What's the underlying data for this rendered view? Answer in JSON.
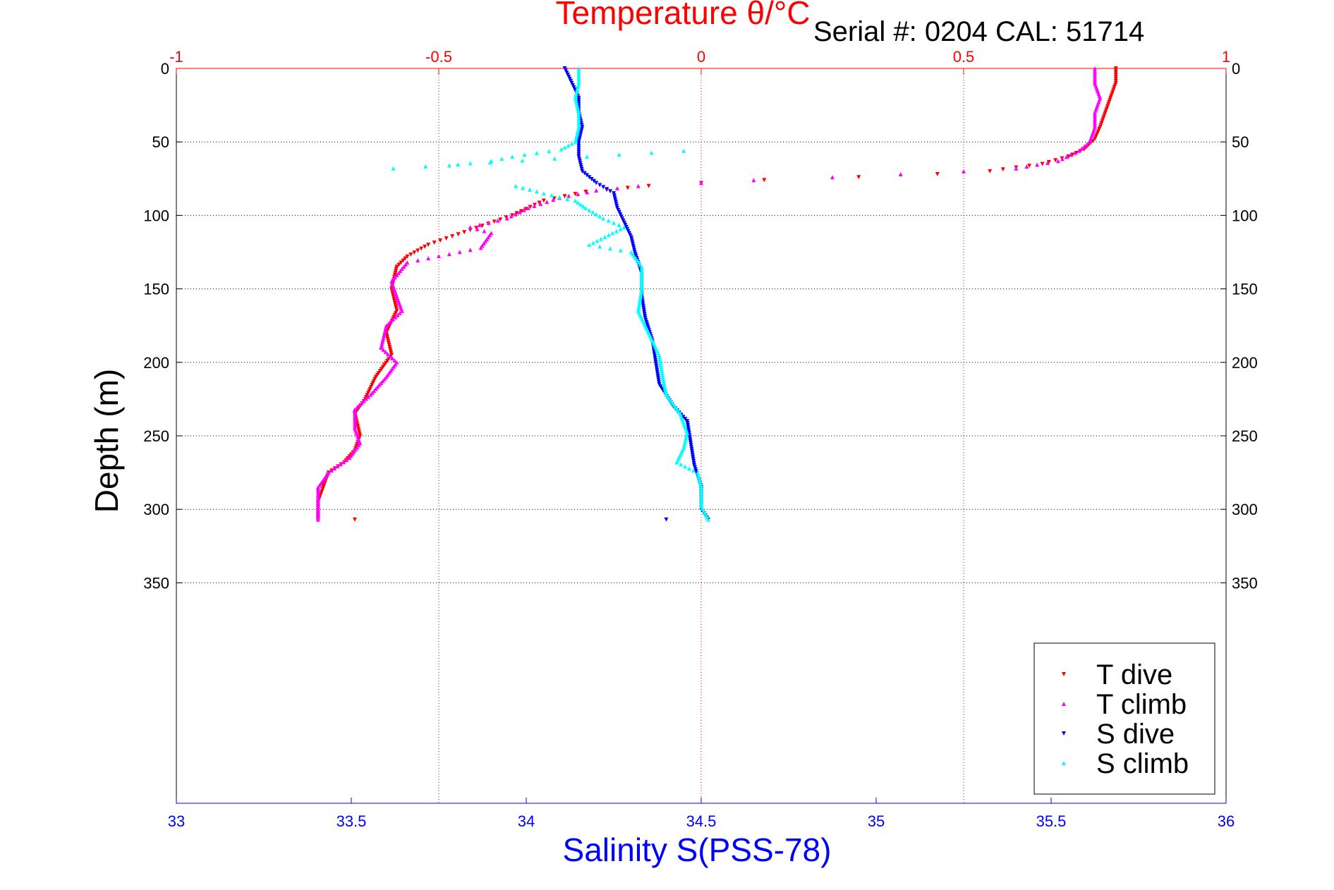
{
  "serial_label": "Serial #: 0204   CAL: 51714",
  "chart_data": {
    "type": "scatter",
    "title": "Temperature θ/°C",
    "ylabel": "Depth (m)",
    "xlabel": "Salinity S(PSS-78)",
    "ylim": [
      0,
      500
    ],
    "y_reversed": true,
    "y_ticks": [
      "0",
      "50",
      "100",
      "150",
      "200",
      "250",
      "300",
      "350"
    ],
    "temperature_axis": {
      "label": "Temperature θ/°C",
      "range": [
        -1,
        1
      ],
      "ticks": [
        "-1",
        "-0.5",
        "0",
        "0.5",
        "1"
      ],
      "color": "#ff0000"
    },
    "salinity_axis": {
      "label": "Salinity S(PSS-78)",
      "range": [
        33,
        36
      ],
      "ticks": [
        "33",
        "33.5",
        "34",
        "34.5",
        "35",
        "35.5",
        "36"
      ],
      "color": "#0000ff"
    },
    "grid": true,
    "legend_position": "bottom-right",
    "series": [
      {
        "name": "T dive",
        "axis": "temperature",
        "color": "#ff0000",
        "marker": "triangle-down",
        "points": [
          [
            0.79,
            0
          ],
          [
            0.79,
            10
          ],
          [
            0.78,
            20
          ],
          [
            0.77,
            30
          ],
          [
            0.76,
            40
          ],
          [
            0.75,
            48
          ],
          [
            0.73,
            55
          ],
          [
            0.7,
            60
          ],
          [
            0.65,
            65
          ],
          [
            0.55,
            70
          ],
          [
            0.45,
            72
          ],
          [
            0.3,
            74
          ],
          [
            0.12,
            76
          ],
          [
            0.0,
            78
          ],
          [
            -0.1,
            80
          ],
          [
            -0.22,
            84
          ],
          [
            -0.3,
            90
          ],
          [
            -0.36,
            100
          ],
          [
            -0.44,
            110
          ],
          [
            -0.52,
            120
          ],
          [
            -0.56,
            128
          ],
          [
            -0.58,
            135
          ],
          [
            -0.59,
            150
          ],
          [
            -0.58,
            165
          ],
          [
            -0.6,
            180
          ],
          [
            -0.59,
            195
          ],
          [
            -0.62,
            210
          ],
          [
            -0.64,
            225
          ],
          [
            -0.66,
            235
          ],
          [
            -0.65,
            250
          ],
          [
            -0.66,
            260
          ],
          [
            -0.68,
            268
          ],
          [
            -0.71,
            275
          ],
          [
            -0.72,
            285
          ],
          [
            -0.73,
            295
          ],
          [
            -0.73,
            307
          ],
          [
            -0.66,
            307
          ]
        ]
      },
      {
        "name": "T climb",
        "axis": "temperature",
        "color": "#ff00ff",
        "marker": "triangle-up",
        "points": [
          [
            0.75,
            0
          ],
          [
            0.75,
            10
          ],
          [
            0.76,
            20
          ],
          [
            0.75,
            30
          ],
          [
            0.75,
            40
          ],
          [
            0.74,
            50
          ],
          [
            0.72,
            56
          ],
          [
            0.68,
            63
          ],
          [
            0.6,
            68
          ],
          [
            0.5,
            70
          ],
          [
            0.38,
            72
          ],
          [
            0.25,
            74
          ],
          [
            0.1,
            76
          ],
          [
            0.0,
            78
          ],
          [
            -0.12,
            80
          ],
          [
            -0.2,
            83
          ],
          [
            -0.27,
            88
          ],
          [
            -0.33,
            95
          ],
          [
            -0.37,
            102
          ],
          [
            -0.44,
            108
          ],
          [
            -0.4,
            112
          ],
          [
            -0.42,
            122
          ],
          [
            -0.56,
            132
          ],
          [
            -0.59,
            145
          ],
          [
            -0.58,
            155
          ],
          [
            -0.57,
            165
          ],
          [
            -0.6,
            175
          ],
          [
            -0.61,
            190
          ],
          [
            -0.58,
            200
          ],
          [
            -0.6,
            210
          ],
          [
            -0.63,
            222
          ],
          [
            -0.66,
            232
          ],
          [
            -0.66,
            245
          ],
          [
            -0.65,
            255
          ],
          [
            -0.67,
            265
          ],
          [
            -0.71,
            275
          ],
          [
            -0.73,
            285
          ],
          [
            -0.73,
            297
          ],
          [
            -0.73,
            307
          ]
        ]
      },
      {
        "name": "S dive",
        "axis": "salinity",
        "color": "#0000ff",
        "marker": "triangle-down",
        "points": [
          [
            34.11,
            0
          ],
          [
            34.13,
            10
          ],
          [
            34.15,
            20
          ],
          [
            34.15,
            30
          ],
          [
            34.16,
            40
          ],
          [
            34.15,
            50
          ],
          [
            34.15,
            60
          ],
          [
            34.16,
            70
          ],
          [
            34.2,
            78
          ],
          [
            34.25,
            85
          ],
          [
            34.26,
            95
          ],
          [
            34.28,
            105
          ],
          [
            34.3,
            115
          ],
          [
            34.31,
            125
          ],
          [
            34.33,
            140
          ],
          [
            34.33,
            155
          ],
          [
            34.34,
            170
          ],
          [
            34.36,
            185
          ],
          [
            34.37,
            200
          ],
          [
            34.38,
            215
          ],
          [
            34.42,
            230
          ],
          [
            34.46,
            240
          ],
          [
            34.47,
            255
          ],
          [
            34.48,
            270
          ],
          [
            34.5,
            285
          ],
          [
            34.5,
            300
          ],
          [
            34.52,
            307
          ],
          [
            34.4,
            307
          ]
        ]
      },
      {
        "name": "S climb",
        "axis": "salinity",
        "color": "#00ffff",
        "marker": "triangle-up",
        "points": [
          [
            34.15,
            0
          ],
          [
            34.15,
            10
          ],
          [
            34.14,
            20
          ],
          [
            34.15,
            30
          ],
          [
            34.15,
            40
          ],
          [
            34.14,
            50
          ],
          [
            34.1,
            55
          ],
          [
            33.96,
            60
          ],
          [
            33.9,
            63
          ],
          [
            33.78,
            66
          ],
          [
            33.62,
            68
          ],
          [
            34.45,
            56
          ],
          [
            33.97,
            80
          ],
          [
            34.05,
            85
          ],
          [
            34.14,
            90
          ],
          [
            34.17,
            95
          ],
          [
            34.22,
            102
          ],
          [
            34.28,
            108
          ],
          [
            34.18,
            120
          ],
          [
            34.3,
            125
          ],
          [
            34.33,
            135
          ],
          [
            34.33,
            150
          ],
          [
            34.32,
            165
          ],
          [
            34.35,
            180
          ],
          [
            34.38,
            195
          ],
          [
            34.39,
            210
          ],
          [
            34.4,
            222
          ],
          [
            34.44,
            235
          ],
          [
            34.46,
            248
          ],
          [
            34.45,
            258
          ],
          [
            34.43,
            268
          ],
          [
            34.49,
            275
          ],
          [
            34.5,
            285
          ],
          [
            34.5,
            298
          ],
          [
            34.52,
            307
          ]
        ]
      }
    ]
  }
}
